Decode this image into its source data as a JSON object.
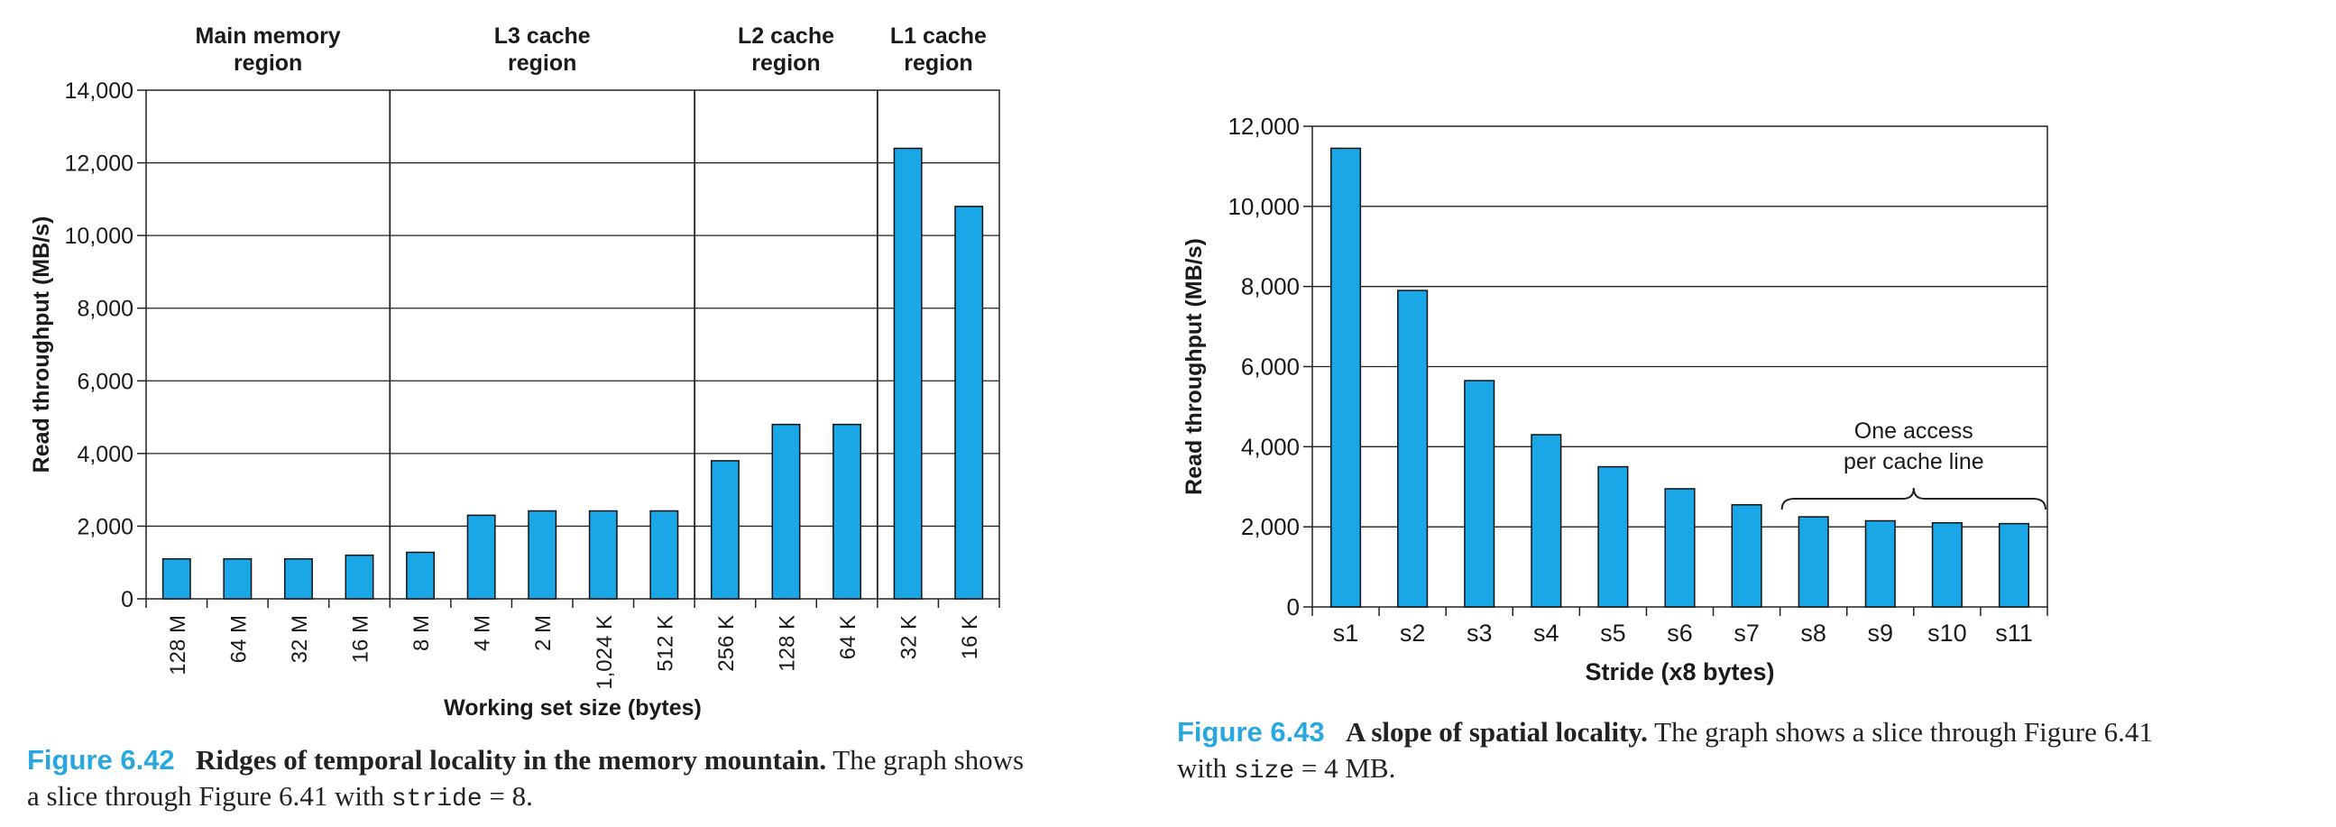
{
  "bar_color": "#1aa7e8",
  "chart_data": [
    {
      "type": "bar",
      "title": "",
      "xlabel": "Working set size (bytes)",
      "ylabel": "Read throughput (MB/s)",
      "ylim": [
        0,
        14000
      ],
      "yticks": [
        "0",
        "2,000",
        "4,000",
        "6,000",
        "8,000",
        "10,000",
        "12,000",
        "14,000"
      ],
      "grid": true,
      "categories": [
        "128 M",
        "64 M",
        "32 M",
        "16 M",
        "8 M",
        "4 M",
        "2 M",
        "1,024 K",
        "512 K",
        "256 K",
        "128 K",
        "64 K",
        "32 K",
        "16 K"
      ],
      "values": [
        1100,
        1100,
        1100,
        1200,
        1280,
        2300,
        2420,
        2420,
        2420,
        3800,
        4800,
        4800,
        12400,
        10800
      ],
      "regions": [
        {
          "label_lines": [
            "Main memory",
            "region"
          ],
          "first": 0,
          "last": 3
        },
        {
          "label_lines": [
            "L3 cache",
            "region"
          ],
          "first": 4,
          "last": 8
        },
        {
          "label_lines": [
            "L2 cache",
            "region"
          ],
          "first": 9,
          "last": 11
        },
        {
          "label_lines": [
            "L1 cache",
            "region"
          ],
          "first": 12,
          "last": 13
        }
      ]
    },
    {
      "type": "bar",
      "title": "",
      "xlabel": "Stride (x8 bytes)",
      "ylabel": "Read throughput (MB/s)",
      "ylim": [
        0,
        12000
      ],
      "yticks": [
        "0",
        "2,000",
        "4,000",
        "6,000",
        "8,000",
        "10,000",
        "12,000"
      ],
      "grid": true,
      "categories": [
        "s1",
        "s2",
        "s3",
        "s4",
        "s5",
        "s6",
        "s7",
        "s8",
        "s9",
        "s10",
        "s11"
      ],
      "values": [
        11450,
        7900,
        5650,
        4300,
        3500,
        2950,
        2550,
        2250,
        2150,
        2100,
        2080
      ],
      "annotation": {
        "lines": [
          "One access",
          "per cache line"
        ],
        "first": 7,
        "last": 10
      }
    }
  ],
  "captions": [
    {
      "label": "Figure 6.42",
      "title": "Ridges of temporal locality in the memory mountain.",
      "text": "The graph shows",
      "line2_pre": "a slice through Figure 6.41 with",
      "code": "stride",
      "line2_post": "= 8."
    },
    {
      "label": "Figure 6.43",
      "title": "A slope of spatial locality.",
      "text": "The graph shows a slice through Figure 6.41",
      "line2_pre": "with",
      "code": "size",
      "line2_post": "= 4 MB."
    }
  ]
}
